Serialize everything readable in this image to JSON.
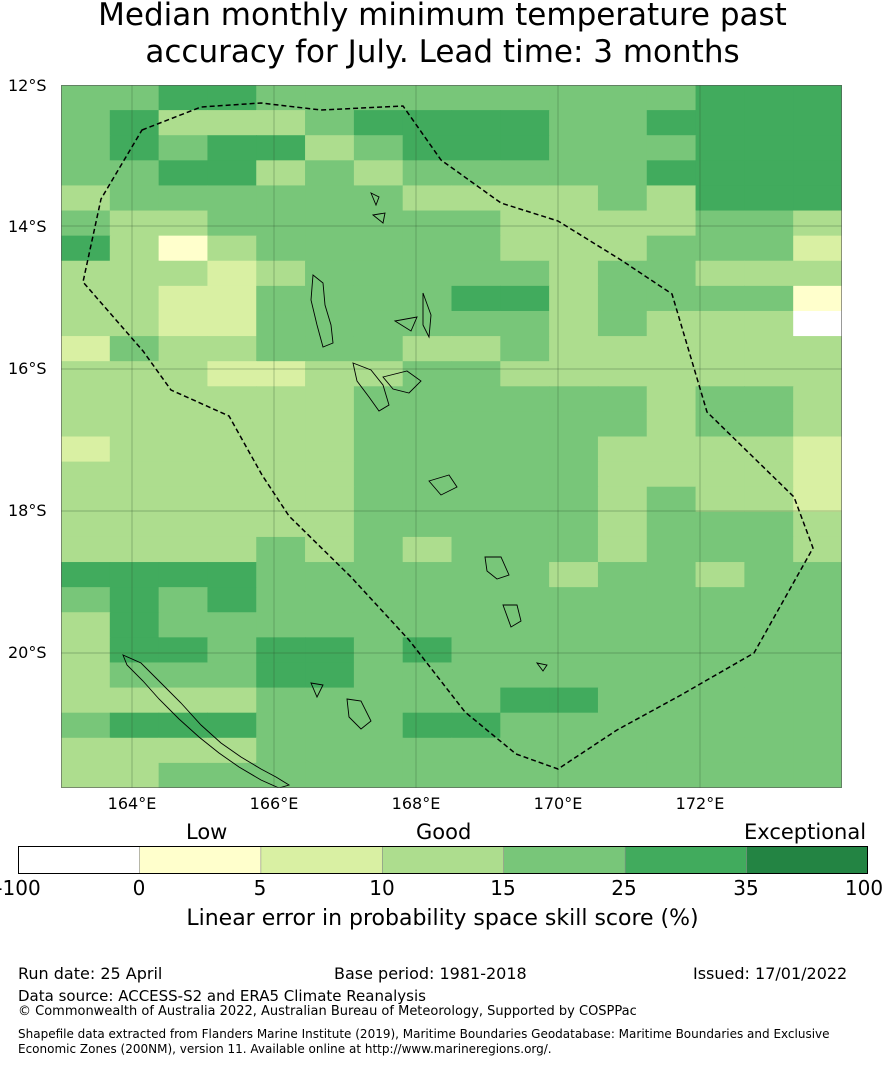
{
  "title_line1": "Median monthly minimum temperature past",
  "title_line2": "accuracy for July. Lead time: 3 months",
  "map": {
    "lat_labels": [
      "12°S",
      "14°S",
      "16°S",
      "18°S",
      "20°S"
    ],
    "lon_labels": [
      "164°E",
      "166°E",
      "168°E",
      "170°E",
      "172°E"
    ]
  },
  "colorbar": {
    "categories": [
      "Low",
      "Good",
      "Exceptional"
    ],
    "ticks": [
      "-100",
      "0",
      "5",
      "10",
      "15",
      "25",
      "35",
      "100"
    ],
    "colors": [
      "#ffffff",
      "#ffffcc",
      "#d9f0a3",
      "#addd8e",
      "#78c679",
      "#41ab5d",
      "#238443"
    ],
    "label": "Linear error in probability space skill score (%)"
  },
  "footer": {
    "run_date": "Run date: 25 April",
    "base_period": "Base period: 1981-2018",
    "issued": "Issued: 17/01/2022",
    "data_source": "Data source: ACCESS-S2 and ERA5 Climate Reanalysis",
    "copyright": "© Commonwealth of Australia 2022, Australian Bureau of Meteorology, Supported by COSPPac",
    "shapefile": "Shapefile data extracted from Flanders Marine Institute (2019), Maritime Boundaries Geodatabase: Maritime Boundaries and Exclusive Economic Zones (200NM), version 11. Available online at http://www.marineregions.org/."
  }
}
